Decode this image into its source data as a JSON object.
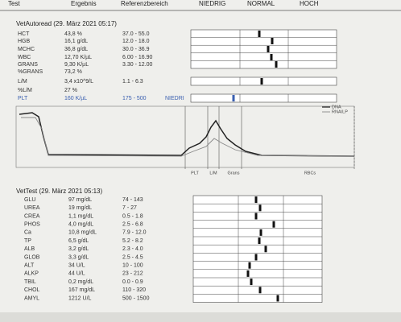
{
  "header": {
    "columns": [
      "Test",
      "Ergebnis",
      "Referenzbereich",
      "NIEDRIG",
      "NORMAL",
      "HOCH"
    ]
  },
  "autoread": {
    "title": "VetAutoread (29. März 2021 05:17)",
    "rows": [
      [
        "HCT",
        "43,8 %",
        "37.0 - 55.0"
      ],
      [
        "HGB",
        "16,1 g/dL",
        "12.0 - 18.0"
      ],
      [
        "MCHC",
        "36,8 g/dL",
        "30.0 - 36.9"
      ],
      [
        "WBC",
        "12,70 K/µL",
        "6.00 - 16.90"
      ],
      [
        "GRANS",
        "9,30 K/µL",
        "3.30 - 12.00"
      ],
      [
        "%GRANS",
        "73,2 %",
        ""
      ],
      [
        "L/M",
        "3,4 x10^9/L",
        "1.1 - 6.3"
      ],
      [
        "%L/M",
        "27 %",
        ""
      ],
      [
        "PLT",
        "160 K/µL",
        "175 - 500",
        "NIEDRI"
      ]
    ],
    "graph": {
      "legend": [
        "DNA",
        "RNA/LP"
      ],
      "axis_labels": [
        "PLT",
        "L/M",
        "Grans",
        "RBCs"
      ]
    }
  },
  "vettest": {
    "title": "VetTest (29. März 2021 05:13)",
    "rows": [
      [
        "GLU",
        "97 mg/dL",
        "74 - 143"
      ],
      [
        "UREA",
        "19 mg/dL",
        "7 - 27"
      ],
      [
        "CREA",
        "1,1 mg/dL",
        "0.5 - 1.8"
      ],
      [
        "PHOS",
        "4,0 mg/dL",
        "2.5 - 6.8"
      ],
      [
        "Ca",
        "10,8 mg/dL",
        "7.9 - 12.0"
      ],
      [
        "TP",
        "6,5 g/dL",
        "5.2 - 8.2"
      ],
      [
        "ALB",
        "3,2 g/dL",
        "2.3 - 4.0"
      ],
      [
        "GLOB",
        "3,3 g/dL",
        "2.5 - 4.5"
      ],
      [
        "ALT",
        "34 U/L",
        "10 - 100"
      ],
      [
        "ALKP",
        "44 U/L",
        "23 - 212"
      ],
      [
        "TBIL",
        "0,2 mg/dL",
        "0.0 - 0.9"
      ],
      [
        "CHOL",
        "167 mg/dL",
        "110 - 320"
      ],
      [
        "AMYL",
        "1212 U/L",
        "500 - 1500"
      ]
    ]
  }
}
